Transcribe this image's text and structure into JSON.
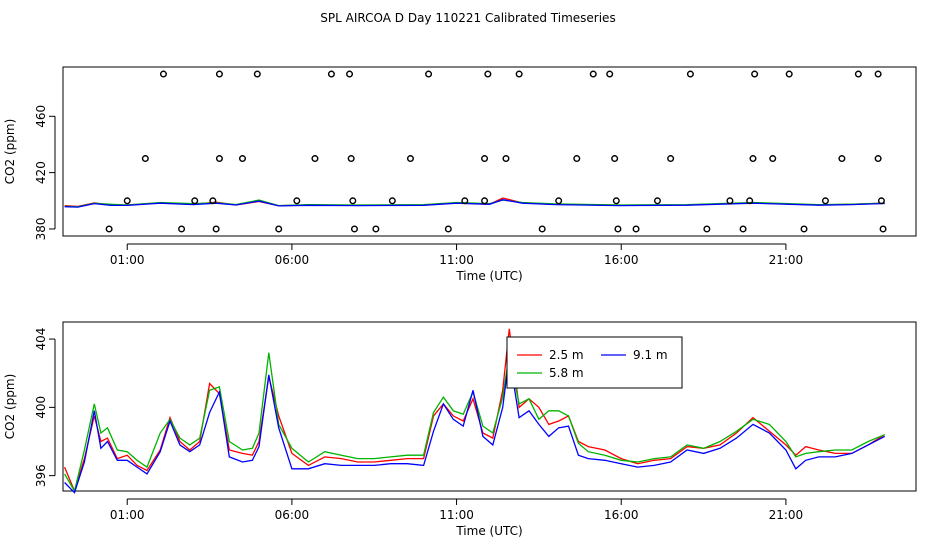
{
  "title": "SPL AIRCOA D  Day 110221  Calibrated Timeseries",
  "colors": {
    "red": "#ff0000",
    "green": "#00b400",
    "blue": "#0000ff",
    "axis": "#000000"
  },
  "chart_data": [
    {
      "type": "scatter",
      "title": "",
      "xlabel": "Time (UTC)",
      "ylabel": "CO2 (ppm)",
      "x_unit": "hours UTC",
      "xlim": [
        -0.95,
        24.95
      ],
      "ylim": [
        375,
        495
      ],
      "xticks": [
        1,
        6,
        11,
        16,
        21
      ],
      "xtick_labels": [
        "01:00",
        "06:00",
        "11:00",
        "16:00",
        "21:00"
      ],
      "yticks": [
        380,
        420,
        460
      ],
      "ytick_labels": [
        "380",
        "420",
        "460"
      ],
      "grid": false,
      "points": [
        [
          0.45,
          380
        ],
        [
          1.0,
          400
        ],
        [
          1.55,
          430
        ],
        [
          2.1,
          490
        ],
        [
          2.65,
          380
        ],
        [
          3.05,
          400
        ],
        [
          3.6,
          400
        ],
        [
          3.7,
          380
        ],
        [
          3.8,
          430
        ],
        [
          3.8,
          490
        ],
        [
          4.95,
          490
        ],
        [
          4.5,
          430
        ],
        [
          6.15,
          400
        ],
        [
          5.6,
          380
        ],
        [
          6.7,
          430
        ],
        [
          7.2,
          490
        ],
        [
          7.75,
          490
        ],
        [
          7.8,
          430
        ],
        [
          7.85,
          400
        ],
        [
          7.9,
          380
        ],
        [
          8.55,
          380
        ],
        [
          9.05,
          400
        ],
        [
          9.6,
          430
        ],
        [
          10.15,
          490
        ],
        [
          10.75,
          380
        ],
        [
          11.25,
          400
        ],
        [
          11.85,
          400
        ],
        [
          11.85,
          430
        ],
        [
          11.95,
          490
        ],
        [
          12.5,
          430
        ],
        [
          12.9,
          490
        ],
        [
          13.6,
          380
        ],
        [
          14.1,
          400
        ],
        [
          14.65,
          430
        ],
        [
          15.15,
          490
        ],
        [
          15.65,
          490
        ],
        [
          15.8,
          430
        ],
        [
          15.85,
          400
        ],
        [
          15.9,
          380
        ],
        [
          16.45,
          380
        ],
        [
          17.1,
          400
        ],
        [
          17.5,
          430
        ],
        [
          18.1,
          490
        ],
        [
          18.6,
          380
        ],
        [
          19.3,
          400
        ],
        [
          19.7,
          380
        ],
        [
          19.9,
          400
        ],
        [
          20.0,
          430
        ],
        [
          20.05,
          490
        ],
        [
          20.6,
          430
        ],
        [
          21.1,
          490
        ],
        [
          21.55,
          380
        ],
        [
          22.2,
          400
        ],
        [
          22.7,
          430
        ],
        [
          23.2,
          490
        ],
        [
          23.8,
          490
        ],
        [
          23.8,
          430
        ],
        [
          23.9,
          400
        ],
        [
          23.95,
          380
        ]
      ],
      "series": [
        {
          "color": "red",
          "x": [
            -0.9,
            -0.5,
            0.0,
            0.5,
            1.0,
            2.0,
            3.0,
            3.7,
            4.3,
            5.0,
            5.6,
            6.5,
            8.0,
            10.0,
            11.0,
            12.0,
            12.4,
            13.0,
            14.0,
            16.0,
            18.0,
            20.0,
            22.0,
            23.0,
            24.0
          ],
          "y": [
            396.5,
            396,
            398.5,
            397,
            397,
            398.5,
            397.5,
            399,
            397,
            399.5,
            396.5,
            397,
            396.8,
            397,
            398.5,
            397.5,
            402,
            398.5,
            397.5,
            396.8,
            397,
            398.5,
            397,
            397.5,
            398.3
          ]
        },
        {
          "color": "green",
          "x": [
            -0.9,
            -0.5,
            0.0,
            0.5,
            1.0,
            2.0,
            3.0,
            3.7,
            4.3,
            5.0,
            5.6,
            6.5,
            8.0,
            10.0,
            11.0,
            12.0,
            12.4,
            13.0,
            14.0,
            16.0,
            18.0,
            20.0,
            22.0,
            23.0,
            24.0
          ],
          "y": [
            396,
            395.8,
            398.2,
            397.5,
            397,
            398.8,
            398,
            398.6,
            397.4,
            400.5,
            396.6,
            397.2,
            397,
            397.2,
            398.8,
            398,
            400.5,
            398.8,
            397.8,
            397,
            397.2,
            398.8,
            397.3,
            397.6,
            398.3
          ]
        },
        {
          "color": "blue",
          "x": [
            -0.9,
            -0.5,
            0.0,
            0.5,
            1.0,
            2.0,
            3.0,
            3.7,
            4.3,
            5.0,
            5.6,
            6.5,
            8.0,
            10.0,
            11.0,
            12.0,
            12.4,
            13.0,
            14.0,
            16.0,
            18.0,
            20.0,
            22.0,
            23.0,
            24.0
          ],
          "y": [
            395.8,
            395.5,
            398,
            396.8,
            396.7,
            398.3,
            397.3,
            398.3,
            397,
            399.8,
            396.4,
            396.8,
            396.6,
            396.8,
            398.3,
            397.5,
            400.8,
            398.3,
            397.3,
            396.6,
            396.9,
            398.3,
            396.9,
            397.3,
            398.1
          ]
        }
      ]
    },
    {
      "type": "line",
      "title": "",
      "xlabel": "Time (UTC)",
      "ylabel": "CO2 (ppm)",
      "x_unit": "hours UTC",
      "xlim": [
        -0.95,
        24.95
      ],
      "ylim": [
        395.1,
        405
      ],
      "xticks": [
        1,
        6,
        11,
        16,
        21
      ],
      "xtick_labels": [
        "01:00",
        "06:00",
        "11:00",
        "16:00",
        "21:00"
      ],
      "yticks": [
        396,
        400,
        404
      ],
      "ytick_labels": [
        "396",
        "400",
        "404"
      ],
      "grid": false,
      "legend": {
        "placement": "top-center",
        "entries": [
          {
            "label": "2.5 m",
            "color": "red"
          },
          {
            "label": "5.8 m",
            "color": "green"
          },
          {
            "label": "9.1 m",
            "color": "blue"
          }
        ]
      },
      "series": [
        {
          "name": "2.5 m",
          "color": "red",
          "x": [
            -0.9,
            -0.6,
            -0.3,
            0.0,
            0.2,
            0.4,
            0.7,
            1.0,
            1.3,
            1.6,
            2.0,
            2.3,
            2.6,
            2.9,
            3.2,
            3.5,
            3.8,
            4.1,
            4.5,
            4.8,
            5.0,
            5.3,
            5.6,
            6.0,
            6.5,
            7.0,
            7.5,
            8.0,
            8.5,
            9.0,
            9.5,
            10.0,
            10.3,
            10.6,
            10.9,
            11.2,
            11.5,
            11.8,
            12.1,
            12.4,
            12.6,
            12.9,
            13.2,
            13.5,
            13.8,
            14.1,
            14.4,
            14.7,
            15.0,
            15.5,
            16.0,
            16.5,
            17.0,
            17.5,
            18.0,
            18.5,
            19.0,
            19.5,
            20.0,
            20.5,
            21.0,
            21.3,
            21.6,
            22.0,
            22.5,
            23.0,
            23.5,
            24.0
          ],
          "y": [
            396.5,
            395.1,
            397,
            399.5,
            398,
            398.2,
            397,
            397.2,
            396.6,
            396.3,
            397.5,
            399.4,
            398,
            397.5,
            398,
            401.4,
            400.8,
            397.5,
            397.3,
            397.2,
            398,
            401.8,
            399.5,
            397.3,
            396.6,
            397.1,
            397,
            396.8,
            396.8,
            396.9,
            397,
            397,
            399.5,
            400.2,
            399.5,
            399.2,
            400.5,
            398.5,
            398.2,
            401,
            404.6,
            400,
            400.5,
            400,
            399,
            399.2,
            399.5,
            398,
            397.7,
            397.5,
            397,
            396.7,
            396.9,
            397,
            397.7,
            397.6,
            397.8,
            398.5,
            399.4,
            398.6,
            397.8,
            397.2,
            397.7,
            397.5,
            397.3,
            397.3,
            397.8,
            398.4
          ]
        },
        {
          "name": "5.8 m",
          "color": "green",
          "x": [
            -0.9,
            -0.6,
            -0.3,
            0.0,
            0.2,
            0.4,
            0.7,
            1.0,
            1.3,
            1.6,
            2.0,
            2.3,
            2.6,
            2.9,
            3.2,
            3.5,
            3.8,
            4.1,
            4.5,
            4.8,
            5.0,
            5.3,
            5.6,
            6.0,
            6.5,
            7.0,
            7.5,
            8.0,
            8.5,
            9.0,
            9.5,
            10.0,
            10.3,
            10.6,
            10.9,
            11.2,
            11.5,
            11.8,
            12.1,
            12.4,
            12.6,
            12.9,
            13.2,
            13.5,
            13.8,
            14.1,
            14.4,
            14.7,
            15.0,
            15.5,
            16.0,
            16.5,
            17.0,
            17.5,
            18.0,
            18.5,
            19.0,
            19.5,
            20.0,
            20.5,
            21.0,
            21.3,
            21.6,
            22.0,
            22.5,
            23.0,
            23.5,
            24.0
          ],
          "y": [
            396.1,
            395.1,
            397.5,
            400.2,
            398.5,
            398.8,
            397.5,
            397.4,
            396.9,
            396.5,
            398.5,
            399.3,
            398.2,
            397.8,
            398.2,
            401,
            401.2,
            398,
            397.5,
            397.6,
            398.5,
            403.2,
            399,
            397.6,
            396.8,
            397.4,
            397.2,
            397,
            397,
            397.1,
            397.2,
            397.2,
            399.7,
            400.6,
            399.8,
            399.6,
            400.9,
            398.9,
            398.5,
            400.6,
            403.1,
            400.2,
            400.5,
            399.3,
            399.8,
            399.8,
            399.5,
            397.9,
            397.4,
            397.2,
            396.9,
            396.8,
            397,
            397.1,
            397.8,
            397.6,
            398,
            398.6,
            399.3,
            399,
            398,
            397.1,
            397.3,
            397.4,
            397.5,
            397.5,
            398,
            398.4
          ]
        },
        {
          "name": "9.1 m",
          "color": "blue",
          "x": [
            -0.9,
            -0.6,
            -0.3,
            0.0,
            0.2,
            0.4,
            0.7,
            1.0,
            1.3,
            1.6,
            2.0,
            2.3,
            2.6,
            2.9,
            3.2,
            3.5,
            3.8,
            4.1,
            4.5,
            4.8,
            5.0,
            5.3,
            5.6,
            6.0,
            6.5,
            7.0,
            7.5,
            8.0,
            8.5,
            9.0,
            9.5,
            10.0,
            10.3,
            10.6,
            10.9,
            11.2,
            11.5,
            11.8,
            12.1,
            12.4,
            12.6,
            12.9,
            13.2,
            13.5,
            13.8,
            14.1,
            14.4,
            14.7,
            15.0,
            15.5,
            16.0,
            16.5,
            17.0,
            17.5,
            18.0,
            18.5,
            19.0,
            19.5,
            20.0,
            20.5,
            21.0,
            21.3,
            21.6,
            22.0,
            22.5,
            23.0,
            23.5,
            24.0
          ],
          "y": [
            395.6,
            395,
            396.8,
            399.8,
            397.6,
            398,
            396.9,
            396.9,
            396.5,
            396.1,
            397.4,
            399.2,
            397.8,
            397.4,
            397.8,
            399.7,
            400.9,
            397.1,
            396.8,
            396.9,
            397.7,
            401.9,
            398.8,
            396.4,
            396.4,
            396.7,
            396.6,
            396.6,
            396.6,
            396.7,
            396.7,
            396.6,
            398.6,
            400.2,
            399.3,
            398.9,
            401,
            398.3,
            397.8,
            400,
            403,
            399.4,
            399.8,
            399,
            398.3,
            398.8,
            398.9,
            397.2,
            397,
            396.9,
            396.7,
            396.5,
            396.6,
            396.8,
            397.5,
            397.3,
            397.6,
            398.2,
            399,
            398.5,
            397.5,
            396.4,
            396.9,
            397.1,
            397.1,
            397.3,
            397.8,
            398.3
          ]
        }
      ]
    }
  ]
}
